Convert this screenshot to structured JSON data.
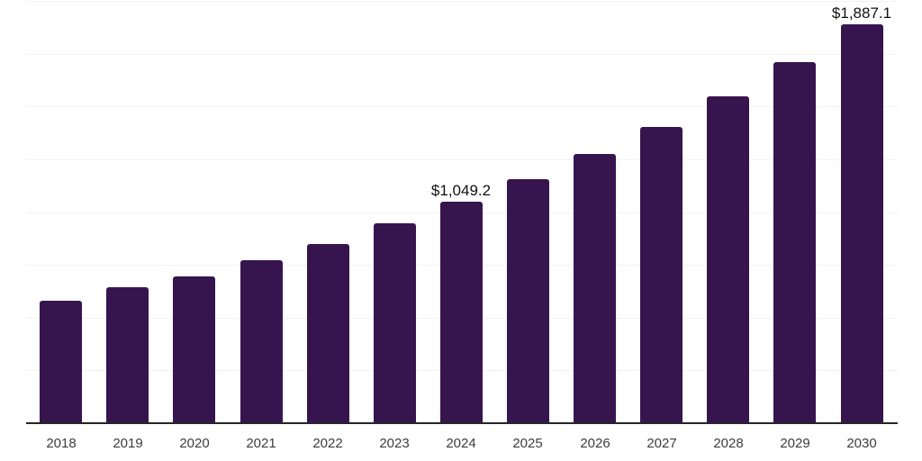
{
  "chart": {
    "background_color": "#ffffff",
    "bar_color": "#36154e",
    "grid_color": "#f2f2f2",
    "axis_line_color": "#262626",
    "tick_label_color": "#3c3c3c",
    "data_label_color": "#111111"
  },
  "chart_data": {
    "type": "bar",
    "categories": [
      "2018",
      "2019",
      "2020",
      "2021",
      "2022",
      "2023",
      "2024",
      "2025",
      "2026",
      "2027",
      "2028",
      "2029",
      "2030"
    ],
    "values": [
      582,
      643,
      694,
      771,
      847,
      947,
      1049.2,
      1156,
      1277,
      1403,
      1548,
      1712,
      1887.1
    ],
    "annotations": [
      {
        "category": "2024",
        "text": "$1,049.2"
      },
      {
        "category": "2030",
        "text": "$1,887.1"
      }
    ],
    "title": "",
    "xlabel": "",
    "ylabel": "",
    "ylim": [
      0,
      2000
    ],
    "gridline_interval": 250,
    "grid": true,
    "legend": false,
    "y_axis_labels_visible": false
  }
}
